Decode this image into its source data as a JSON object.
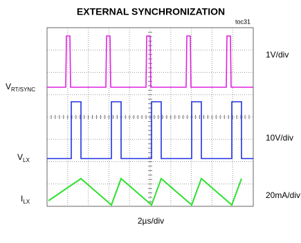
{
  "title": "EXTERNAL SYNCHRONIZATION",
  "tag": "toc31",
  "channels": [
    {
      "label": "V",
      "subscript": "RT/SYNC",
      "scale": "1V/div"
    },
    {
      "label": "V",
      "subscript": "LX",
      "scale": "10V/div"
    },
    {
      "label": "I",
      "subscript": "LX",
      "scale": "20mA/div"
    }
  ],
  "timebase": "2µs/div"
}
